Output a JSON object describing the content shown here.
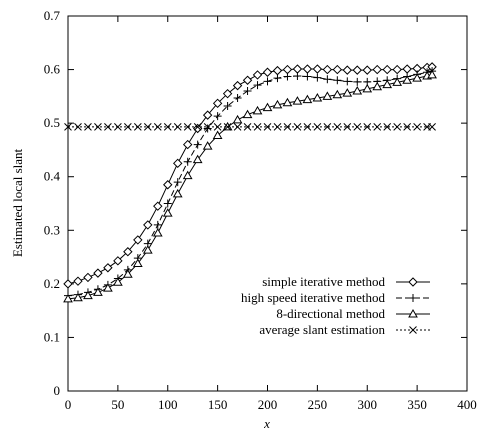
{
  "chart_data": {
    "type": "line",
    "title": "",
    "xlabel": "x",
    "ylabel": "Estimated local slant",
    "xlim": [
      0,
      400
    ],
    "ylim": [
      0,
      0.7
    ],
    "xticks": [
      0,
      50,
      100,
      150,
      200,
      250,
      300,
      350,
      400
    ],
    "yticks": [
      0,
      0.1,
      0.2,
      0.3,
      0.4,
      0.5,
      0.6,
      0.7
    ],
    "xtick_labels": [
      "0",
      "50",
      "100",
      "150",
      "200",
      "250",
      "300",
      "350",
      "400"
    ],
    "ytick_labels": [
      "0",
      "0.1",
      "0.2",
      "0.3",
      "0.4",
      "0.5",
      "0.6",
      "0.7"
    ],
    "grid": false,
    "legend_position": "bottom-right",
    "series": [
      {
        "name": "simple iterative method",
        "marker": "diamond",
        "line": "solid",
        "x": [
          0,
          10,
          20,
          30,
          40,
          50,
          60,
          70,
          80,
          90,
          100,
          110,
          120,
          130,
          140,
          150,
          160,
          170,
          180,
          190,
          200,
          210,
          220,
          230,
          240,
          250,
          260,
          270,
          280,
          290,
          300,
          310,
          320,
          330,
          340,
          350,
          360,
          365
        ],
        "y": [
          0.2,
          0.205,
          0.212,
          0.22,
          0.23,
          0.243,
          0.26,
          0.282,
          0.31,
          0.345,
          0.385,
          0.425,
          0.46,
          0.49,
          0.515,
          0.537,
          0.555,
          0.57,
          0.58,
          0.59,
          0.595,
          0.598,
          0.6,
          0.601,
          0.601,
          0.601,
          0.6,
          0.6,
          0.599,
          0.599,
          0.599,
          0.6,
          0.6,
          0.6,
          0.601,
          0.602,
          0.604,
          0.605
        ]
      },
      {
        "name": "high speed iterative method",
        "marker": "plus",
        "line": "dashed",
        "x": [
          0,
          10,
          20,
          30,
          40,
          50,
          60,
          70,
          80,
          90,
          100,
          110,
          120,
          130,
          140,
          150,
          160,
          170,
          180,
          190,
          200,
          210,
          220,
          230,
          240,
          250,
          260,
          270,
          280,
          290,
          300,
          310,
          320,
          330,
          340,
          350,
          360,
          365
        ],
        "y": [
          0.178,
          0.18,
          0.184,
          0.19,
          0.198,
          0.21,
          0.226,
          0.248,
          0.275,
          0.31,
          0.35,
          0.39,
          0.428,
          0.46,
          0.49,
          0.513,
          0.532,
          0.547,
          0.56,
          0.571,
          0.578,
          0.584,
          0.587,
          0.588,
          0.587,
          0.585,
          0.582,
          0.58,
          0.578,
          0.577,
          0.577,
          0.578,
          0.58,
          0.583,
          0.587,
          0.591,
          0.595,
          0.597
        ]
      },
      {
        "name": "8-directional method",
        "marker": "triangle",
        "line": "solid",
        "x": [
          0,
          10,
          20,
          30,
          40,
          50,
          60,
          70,
          80,
          90,
          100,
          110,
          120,
          130,
          140,
          150,
          160,
          170,
          180,
          190,
          200,
          210,
          220,
          230,
          240,
          250,
          260,
          270,
          280,
          290,
          300,
          310,
          320,
          330,
          340,
          350,
          360,
          365
        ],
        "y": [
          0.172,
          0.174,
          0.178,
          0.184,
          0.192,
          0.203,
          0.218,
          0.238,
          0.263,
          0.295,
          0.332,
          0.368,
          0.402,
          0.432,
          0.457,
          0.477,
          0.493,
          0.506,
          0.516,
          0.523,
          0.529,
          0.534,
          0.538,
          0.541,
          0.544,
          0.547,
          0.55,
          0.553,
          0.556,
          0.56,
          0.564,
          0.568,
          0.572,
          0.576,
          0.58,
          0.584,
          0.588,
          0.59
        ]
      },
      {
        "name": "average slant estimation",
        "marker": "cross",
        "line": "dotted",
        "x": [
          0,
          10,
          20,
          30,
          40,
          50,
          60,
          70,
          80,
          90,
          100,
          110,
          120,
          130,
          140,
          150,
          160,
          170,
          180,
          190,
          200,
          210,
          220,
          230,
          240,
          250,
          260,
          270,
          280,
          290,
          300,
          310,
          320,
          330,
          340,
          350,
          360,
          365
        ],
        "y": [
          0.493,
          0.493,
          0.493,
          0.493,
          0.493,
          0.493,
          0.493,
          0.493,
          0.493,
          0.493,
          0.493,
          0.493,
          0.493,
          0.493,
          0.493,
          0.493,
          0.493,
          0.493,
          0.493,
          0.493,
          0.493,
          0.493,
          0.493,
          0.493,
          0.493,
          0.493,
          0.493,
          0.493,
          0.493,
          0.493,
          0.493,
          0.493,
          0.493,
          0.493,
          0.493,
          0.493,
          0.493,
          0.493
        ]
      }
    ]
  }
}
